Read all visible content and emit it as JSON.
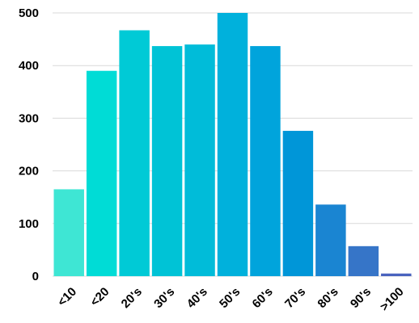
{
  "chart_data": {
    "type": "bar",
    "categories": [
      "<10",
      "<20",
      "20's",
      "30's",
      "40's",
      "50's",
      "60's",
      "70's",
      "80's",
      "90's",
      ">100"
    ],
    "values": [
      165,
      390,
      467,
      437,
      440,
      500,
      437,
      276,
      136,
      57,
      5
    ],
    "colors": [
      "#3ee6d4",
      "#00dcd6",
      "#00cad6",
      "#00c3d6",
      "#00bcd9",
      "#00b1dc",
      "#00a4dc",
      "#0096d8",
      "#1a85d2",
      "#3675c8",
      "#4a63be"
    ],
    "yticks": [
      0,
      100,
      200,
      300,
      400,
      500
    ],
    "ylim": [
      0,
      500
    ],
    "grid": true,
    "title": "",
    "xlabel": "",
    "ylabel": ""
  }
}
